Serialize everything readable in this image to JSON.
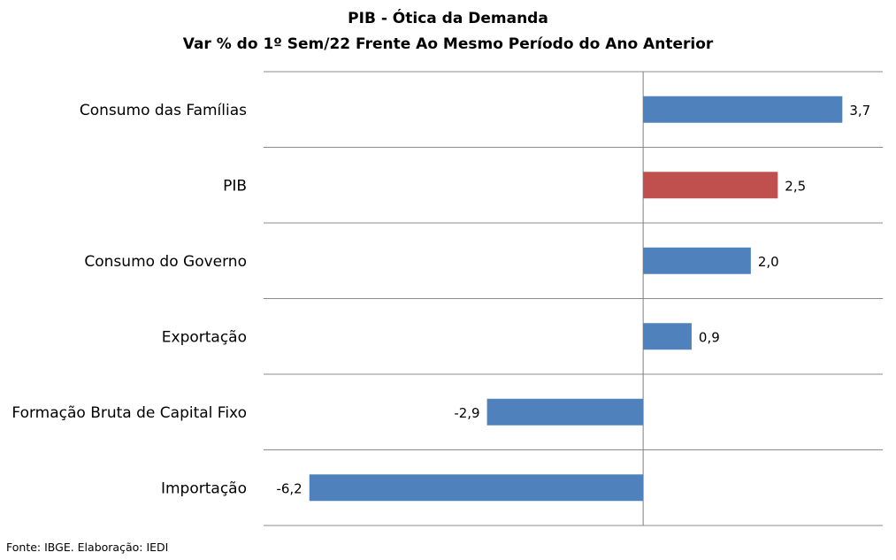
{
  "chart_data": {
    "type": "bar",
    "orientation": "horizontal",
    "title": "PIB - Ótica da Demanda",
    "subtitle": "Var % do 1º Sem/22 Frente Ao Mesmo Período do Ano Anterior",
    "categories": [
      "Consumo das Famílias",
      "PIB",
      "Consumo do Governo",
      "Exportação",
      "Formação Bruta de Capital Fixo",
      "Importação"
    ],
    "values": [
      3.7,
      2.5,
      2.0,
      0.9,
      -2.9,
      -6.2
    ],
    "data_labels": [
      "3,7",
      "2,5",
      "2,0",
      "0,9",
      "-2,9",
      "-6,2"
    ],
    "bar_colors": [
      "#4f81bd",
      "#c0504d",
      "#4f81bd",
      "#4f81bd",
      "#4f81bd",
      "#4f81bd"
    ],
    "xlim": [
      -7.05,
      4.45
    ],
    "xlabel": "",
    "ylabel": "",
    "grid": "horizontal separators",
    "legend": "none"
  },
  "source_note": "Fonte: IBGE. Elaboração: IEDI"
}
